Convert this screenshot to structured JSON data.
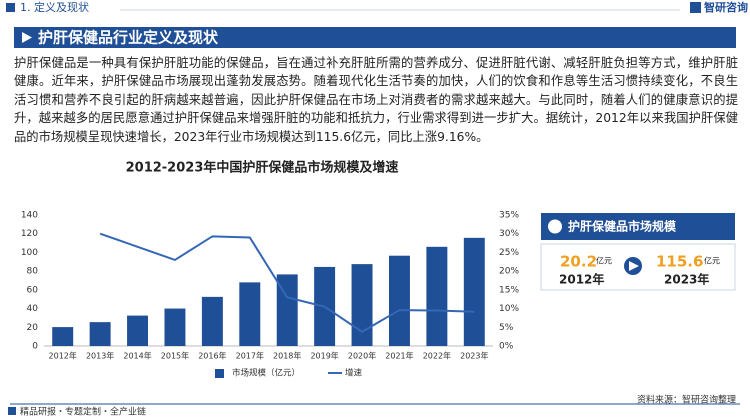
{
  "header": {
    "section": "1. 定义及现状",
    "logo": "智研咨询",
    "title": "护肝保健品行业定义及现状"
  },
  "body": {
    "paragraph": "护肝保健品是一种具有保护肝脏功能的保健品，旨在通过补充肝脏所需的营养成分、促进肝脏代谢、减轻肝脏负担等方式，维护肝脏健康。近年来，护肝保健品市场展现出蓬勃发展态势。随着现代化生活节奏的加快，人们的饮食和作息等生活习惯持续变化，不良生活习惯和营养不良引起的肝病越来越普遍，因此护肝保健品在市场上对消费者的需求越来越大。与此同时，随着人们的健康意识的提升，越来越多的居民愿意通过护肝保健品来增强肝脏的功能和抵抗力，行业需求得到进一步扩大。据统计，2012年以来我国护肝保健品的市场规模呈现快速增长，2023年行业市场规模达到115.6亿元，同比上涨9.16%。"
  },
  "chart_data": {
    "type": "bar",
    "title": "2012-2023年中国护肝保健品市场规模及增速",
    "categories": [
      "2012年",
      "2013年",
      "2014年",
      "2015年",
      "2016年",
      "2017年",
      "2018年",
      "2019年",
      "2020年",
      "2021年",
      "2022年",
      "2023年"
    ],
    "series": [
      {
        "name": "市场规模（亿元）",
        "color": "#1f4f96",
        "values": [
          20.2,
          25.5,
          32.5,
          40,
          52.5,
          68,
          76.5,
          84.5,
          87.5,
          96.5,
          106,
          115.6
        ]
      },
      {
        "name": "增速",
        "type": "line",
        "axis": "y2",
        "color": "#3467b5",
        "values": [
          null,
          30,
          26.5,
          23,
          29.3,
          29,
          13,
          10.5,
          3.8,
          9.6,
          9.5,
          9.16
        ]
      }
    ],
    "ylim": [
      0,
      140
    ],
    "yticks": [
      0,
      20,
      40,
      60,
      80,
      100,
      120,
      140
    ],
    "y2lim": [
      0,
      35
    ],
    "y2ticks": [
      {
        "value": 0,
        "label": "0%"
      },
      {
        "value": 5,
        "label": "5%"
      },
      {
        "value": 10,
        "label": "10%"
      },
      {
        "value": 15,
        "label": "15%"
      },
      {
        "value": 20,
        "label": "20%"
      },
      {
        "value": 25,
        "label": "25%"
      },
      {
        "value": 30,
        "label": "30%"
      },
      {
        "value": 35,
        "label": "35%"
      }
    ],
    "grid": false
  },
  "summary": {
    "title": "护肝保健品市场规模",
    "start": {
      "value": 20.2,
      "unit": "亿元",
      "year": "2012年"
    },
    "end": {
      "value": 115.6,
      "unit": "亿元",
      "year": "2023年"
    }
  },
  "footer": {
    "tagline": "精品研报・专题定制・全产业链",
    "source": "资料来源：智研咨询整理"
  }
}
